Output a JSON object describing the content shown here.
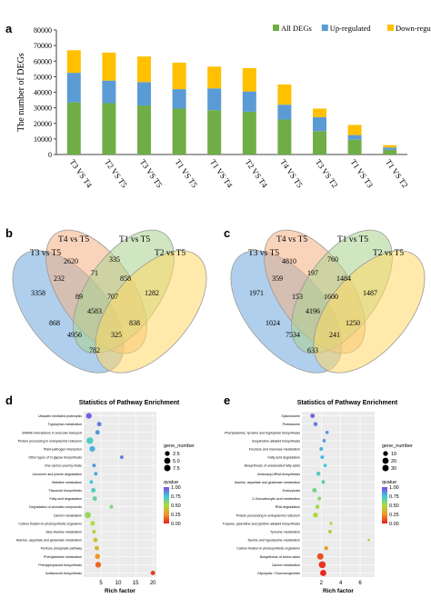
{
  "panels": {
    "a": "a",
    "b": "b",
    "c": "c",
    "d": "d",
    "e": "e"
  },
  "chart_data": [
    {
      "type": "bar",
      "panel": "a",
      "ylabel": "The number of DEGs",
      "ylim": [
        0,
        80000
      ],
      "yticks": [
        "0",
        "10000",
        "20000",
        "30000",
        "40000",
        "50000",
        "60000",
        "70000",
        "80000"
      ],
      "categories": [
        "T3 VS T4",
        "T2 VS T5",
        "T3 VS T5",
        "T1 VS T5",
        "T1 VS T4",
        "T2 VS T4",
        "T4 VS T5",
        "T3 VS T2",
        "T1 VS T3",
        "T1 VS T2"
      ],
      "legend_position": "top-right",
      "series": [
        {
          "name": "All DEGs",
          "color": "#70AD47",
          "values": [
            33500,
            33000,
            31500,
            29500,
            28500,
            27500,
            22500,
            15000,
            9500,
            3000
          ]
        },
        {
          "name": "Up-regulated",
          "color": "#5B9BD5",
          "values": [
            19000,
            14500,
            15000,
            12500,
            14000,
            13000,
            9500,
            9000,
            3000,
            1500
          ]
        },
        {
          "name": "Down-regulated",
          "color": "#FFC000",
          "values": [
            14500,
            18000,
            16500,
            17000,
            14000,
            15000,
            13000,
            5500,
            6500,
            1500
          ]
        }
      ]
    },
    {
      "type": "venn",
      "panel": "b",
      "sets": [
        {
          "name": "T3 vs T5",
          "color": "#6FA8DC"
        },
        {
          "name": "T4 vs T5",
          "color": "#F4B183"
        },
        {
          "name": "T1 vs T5",
          "color": "#A9D18E"
        },
        {
          "name": "T2 vs T5",
          "color": "#FFD966"
        }
      ],
      "region_values": [
        "3358",
        "2620",
        "335",
        "1282",
        "232",
        "71",
        "858",
        "868",
        "89",
        "707",
        "838",
        "4583",
        "4956",
        "325",
        "782"
      ]
    },
    {
      "type": "venn",
      "panel": "c",
      "sets": [
        {
          "name": "T3 vs T5",
          "color": "#6FA8DC"
        },
        {
          "name": "T4 vs T5",
          "color": "#F4B183"
        },
        {
          "name": "T1 vs T5",
          "color": "#A9D18E"
        },
        {
          "name": "T2 vs T5",
          "color": "#FFD966"
        }
      ],
      "region_values": [
        "1971",
        "4810",
        "760",
        "1487",
        "359",
        "197",
        "1484",
        "1024",
        "153",
        "1600",
        "1250",
        "4196",
        "7534",
        "241",
        "633"
      ]
    },
    {
      "type": "scatter",
      "panel": "d",
      "title": "Statistics of Pathway Enrichment",
      "xlabel": "Rich factor",
      "xticks": [
        "5",
        "10",
        "15",
        "20"
      ],
      "xlim": [
        0,
        21
      ],
      "pathways": [
        "Ubiquitin mediated proteolysis",
        "Tryptophan metabolism",
        "SNARE interactions in vesicular transport",
        "Protein processing in endoplasmic reticulum",
        "Plant-pathogen interaction",
        "Other types of O-glycan biosynthesis",
        "One carbon pool by folate",
        "Limonene and pinene degradation",
        "Histidine metabolism",
        "Flavonoid biosynthesis",
        "Fatty acid degradation",
        "Degradation of aromatic compounds",
        "Carbon metabolism",
        "Carbon fixation in photosynthetic organisms",
        "beta-Alanine metabolism",
        "Alanine, aspartate and glutamate metabolism",
        "Pentose phosphate pathway",
        "Phenylalanine metabolism",
        "Phenylpropanoid biosynthesis",
        "Isoflavonoid biosynthesis"
      ],
      "rich_factor": [
        1.5,
        4.5,
        4.0,
        1.8,
        2.5,
        11.0,
        3.0,
        3.5,
        2.2,
        2.8,
        3.2,
        8.0,
        1.2,
        2.6,
        3.0,
        3.4,
        3.8,
        4.0,
        4.2,
        20.0
      ],
      "gene_number": [
        4,
        2,
        2,
        6,
        4,
        1,
        1,
        1,
        1,
        2,
        2,
        1,
        5,
        2,
        1,
        2,
        2,
        3,
        4,
        2
      ],
      "qvalue": [
        0.95,
        0.9,
        0.85,
        0.7,
        0.8,
        0.9,
        0.85,
        0.8,
        0.75,
        0.7,
        0.65,
        0.6,
        0.55,
        0.5,
        0.45,
        0.4,
        0.35,
        0.25,
        0.15,
        0.05
      ],
      "size_legend": {
        "title": "gene_number",
        "labels": [
          "2.5",
          "5.0",
          "7.5"
        ]
      },
      "color_legend": {
        "title": "qvalue",
        "labels": [
          "1.00",
          "0.75",
          "0.50",
          "0.25",
          "0.00"
        ]
      }
    },
    {
      "type": "scatter",
      "panel": "e",
      "title": "Statistics of Pathway Enrichment",
      "xlabel": "Rich factor",
      "xticks": [
        "2",
        "4",
        "6"
      ],
      "xlim": [
        0,
        7.5
      ],
      "pathways": [
        "Spliceosome",
        "Proteasome",
        "Phenylalanine, tyrosine and tryptophan biosynthesis",
        "Isoquinoline alkaloid biosynthesis",
        "Fructose and mannose metabolism",
        "Fatty acid degradation",
        "Biosynthesis of unsaturated fatty acids",
        "Aminoacyl-tRNA biosynthesis",
        "Alanine, aspartate and glutamate metabolism",
        "Endocytosis",
        "2-Oxocarboxylic acid metabolism",
        "RNA degradation",
        "Protein processing in endoplasmic reticulum",
        "Tropane, piperidine and pyridine alkaloid biosynthesis",
        "Tyrosine metabolism",
        "Taurine and hypotaurine metabolism",
        "Carbon fixation in photosynthetic organisms",
        "Biosynthesis of amino acids",
        "Carbon metabolism",
        "Glycolysis / Gluconeogenesis"
      ],
      "rich_factor": [
        1.1,
        1.4,
        2.6,
        2.3,
        2.0,
        2.1,
        2.4,
        1.7,
        2.2,
        1.3,
        1.8,
        1.6,
        1.4,
        3.0,
        2.9,
        6.9,
        2.5,
        1.9,
        2.1,
        2.2
      ],
      "gene_number": [
        8,
        6,
        3,
        3,
        4,
        4,
        3,
        6,
        4,
        8,
        5,
        6,
        10,
        2,
        4,
        1,
        6,
        22,
        26,
        20
      ],
      "qvalue": [
        0.95,
        0.9,
        0.85,
        0.85,
        0.8,
        0.78,
        0.75,
        0.7,
        0.68,
        0.62,
        0.58,
        0.52,
        0.48,
        0.45,
        0.42,
        0.4,
        0.3,
        0.1,
        0.05,
        0.02
      ],
      "size_legend": {
        "title": "gene_number",
        "labels": [
          "10",
          "20",
          "30"
        ]
      },
      "color_legend": {
        "title": "qvalue",
        "labels": [
          "1.00",
          "0.75",
          "0.50",
          "0.25",
          "0.00"
        ]
      }
    }
  ]
}
